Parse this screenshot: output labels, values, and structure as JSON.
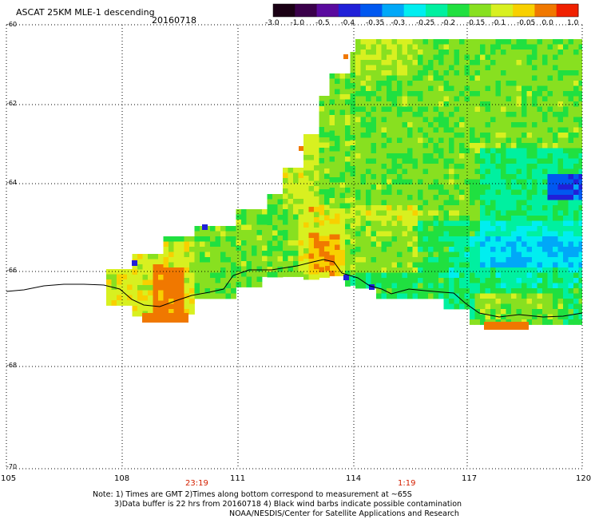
{
  "title": "ASCAT 25KM MLE-1 descending",
  "date": "20160718",
  "colorbar": {
    "ticks": [
      "-3.0",
      "-1.0",
      "-0.5",
      "-0.4",
      "-0.35",
      "-0.3",
      "-0.25",
      "-0.2",
      "-0.15",
      "-0.1",
      "-0.05",
      "0.0",
      "1.0"
    ],
    "colors": [
      "#1a0014",
      "#3a004a",
      "#5a0a9e",
      "#2020d8",
      "#0058f0",
      "#00a8f8",
      "#00eef0",
      "#00f0a0",
      "#20e040",
      "#88e020",
      "#d8f020",
      "#f8d000",
      "#f07800",
      "#f02000"
    ]
  },
  "axes": {
    "lon_ticks": [
      "105",
      "108",
      "111",
      "114",
      "117",
      "120"
    ],
    "lat_ticks": [
      "-60",
      "-62",
      "-64",
      "-66",
      "-68",
      "-70"
    ]
  },
  "pass_times": [
    "23:19",
    "1:19"
  ],
  "notes": {
    "line1": "Note: 1) Times are GMT 2)Times along bottom correspond to measurement at ~65S",
    "line2": "3)Data buffer is 22 hrs from 20160718 4) Black wind barbs indicate possible contamination",
    "line3": "NOAA/NESDIS/Center for Satellite Applications and Research"
  }
}
